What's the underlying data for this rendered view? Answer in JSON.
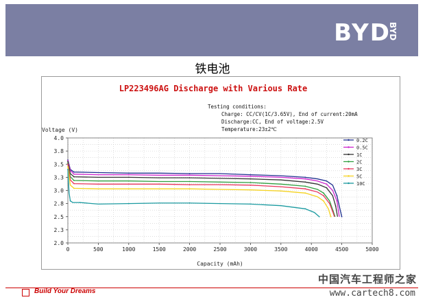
{
  "header": {
    "logo": "BYD",
    "logo_side": "BYD"
  },
  "slide_title": "铁电池",
  "chart_data": {
    "type": "line",
    "title": "LP223496AG Discharge with Various Rate",
    "conditions": [
      "Testing conditions:",
      "Charge: CC/CV(1C/3.65V), End of current:20mA",
      "Discharge:CC, End of voltage:2.5V",
      "Temperature:23±2℃"
    ],
    "ylabel": "Voltage (V)",
    "xlabel": "Capacity (mAh)",
    "xlim": [
      0,
      5000
    ],
    "ylim": [
      2.0,
      4.0
    ],
    "xticks": [
      "0",
      "500",
      "1000",
      "1500",
      "2000",
      "2500",
      "3000",
      "3500",
      "4000",
      "4500",
      "5000"
    ],
    "yticks": [
      "2.0",
      "2.3",
      "2.5",
      "2.8",
      "3.0",
      "3.3",
      "3.5",
      "3.8",
      "4.0"
    ],
    "legend_position": "right",
    "grid": true,
    "series": [
      {
        "name": "0.2C",
        "color": "#1f2f8f",
        "points": [
          [
            0,
            3.58
          ],
          [
            40,
            3.4
          ],
          [
            100,
            3.35
          ],
          [
            500,
            3.34
          ],
          [
            1000,
            3.33
          ],
          [
            1500,
            3.33
          ],
          [
            2000,
            3.32
          ],
          [
            2500,
            3.32
          ],
          [
            3000,
            3.3
          ],
          [
            3500,
            3.28
          ],
          [
            3900,
            3.25
          ],
          [
            4100,
            3.22
          ],
          [
            4250,
            3.18
          ],
          [
            4350,
            3.1
          ],
          [
            4420,
            2.9
          ],
          [
            4470,
            2.65
          ],
          [
            4500,
            2.5
          ]
        ]
      },
      {
        "name": "0.5C",
        "color": "#cc22cc",
        "points": [
          [
            0,
            3.57
          ],
          [
            40,
            3.38
          ],
          [
            100,
            3.31
          ],
          [
            500,
            3.3
          ],
          [
            1000,
            3.3
          ],
          [
            1500,
            3.29
          ],
          [
            2000,
            3.29
          ],
          [
            2500,
            3.28
          ],
          [
            3000,
            3.27
          ],
          [
            3500,
            3.25
          ],
          [
            3900,
            3.22
          ],
          [
            4100,
            3.18
          ],
          [
            4250,
            3.12
          ],
          [
            4350,
            3.0
          ],
          [
            4420,
            2.8
          ],
          [
            4460,
            2.5
          ]
        ]
      },
      {
        "name": "1C",
        "color": "#333333",
        "points": [
          [
            0,
            3.55
          ],
          [
            40,
            3.32
          ],
          [
            100,
            3.26
          ],
          [
            500,
            3.25
          ],
          [
            1000,
            3.25
          ],
          [
            1500,
            3.24
          ],
          [
            2000,
            3.24
          ],
          [
            2500,
            3.23
          ],
          [
            3000,
            3.22
          ],
          [
            3500,
            3.2
          ],
          [
            3900,
            3.16
          ],
          [
            4100,
            3.12
          ],
          [
            4250,
            3.05
          ],
          [
            4350,
            2.9
          ],
          [
            4400,
            2.7
          ],
          [
            4430,
            2.5
          ]
        ]
      },
      {
        "name": "2C",
        "color": "#2e9e3e",
        "points": [
          [
            0,
            3.52
          ],
          [
            40,
            3.26
          ],
          [
            100,
            3.19
          ],
          [
            500,
            3.18
          ],
          [
            1000,
            3.18
          ],
          [
            1500,
            3.17
          ],
          [
            2000,
            3.17
          ],
          [
            2500,
            3.16
          ],
          [
            3000,
            3.15
          ],
          [
            3500,
            3.12
          ],
          [
            3900,
            3.08
          ],
          [
            4100,
            3.02
          ],
          [
            4200,
            2.95
          ],
          [
            4300,
            2.8
          ],
          [
            4360,
            2.6
          ],
          [
            4390,
            2.5
          ]
        ]
      },
      {
        "name": "3C",
        "color": "#e8335a",
        "points": [
          [
            0,
            3.5
          ],
          [
            40,
            3.2
          ],
          [
            100,
            3.13
          ],
          [
            500,
            3.12
          ],
          [
            1000,
            3.12
          ],
          [
            1500,
            3.12
          ],
          [
            2000,
            3.11
          ],
          [
            2500,
            3.11
          ],
          [
            3000,
            3.1
          ],
          [
            3500,
            3.07
          ],
          [
            3900,
            3.03
          ],
          [
            4100,
            2.97
          ],
          [
            4200,
            2.9
          ],
          [
            4300,
            2.75
          ],
          [
            4350,
            2.6
          ],
          [
            4380,
            2.5
          ]
        ]
      },
      {
        "name": "5C",
        "color": "#f5d21f",
        "points": [
          [
            0,
            3.45
          ],
          [
            40,
            3.1
          ],
          [
            100,
            3.04
          ],
          [
            500,
            3.03
          ],
          [
            1000,
            3.03
          ],
          [
            1500,
            3.03
          ],
          [
            2000,
            3.03
          ],
          [
            2500,
            3.02
          ],
          [
            3000,
            3.01
          ],
          [
            3500,
            2.99
          ],
          [
            3900,
            2.95
          ],
          [
            4100,
            2.88
          ],
          [
            4200,
            2.8
          ],
          [
            4280,
            2.65
          ],
          [
            4320,
            2.5
          ]
        ]
      },
      {
        "name": "10C",
        "color": "#1a9aa0",
        "points": [
          [
            0,
            3.4
          ],
          [
            20,
            2.95
          ],
          [
            40,
            2.8
          ],
          [
            80,
            2.77
          ],
          [
            200,
            2.77
          ],
          [
            500,
            2.74
          ],
          [
            1000,
            2.75
          ],
          [
            1500,
            2.76
          ],
          [
            2000,
            2.76
          ],
          [
            2500,
            2.75
          ],
          [
            3000,
            2.74
          ],
          [
            3500,
            2.71
          ],
          [
            3900,
            2.65
          ],
          [
            4050,
            2.58
          ],
          [
            4130,
            2.5
          ]
        ]
      }
    ]
  },
  "footer": {
    "slogan": "Build Your Dreams"
  },
  "watermark": {
    "line1": "中国汽车工程师之家",
    "line2": "www.cartech8.com"
  }
}
